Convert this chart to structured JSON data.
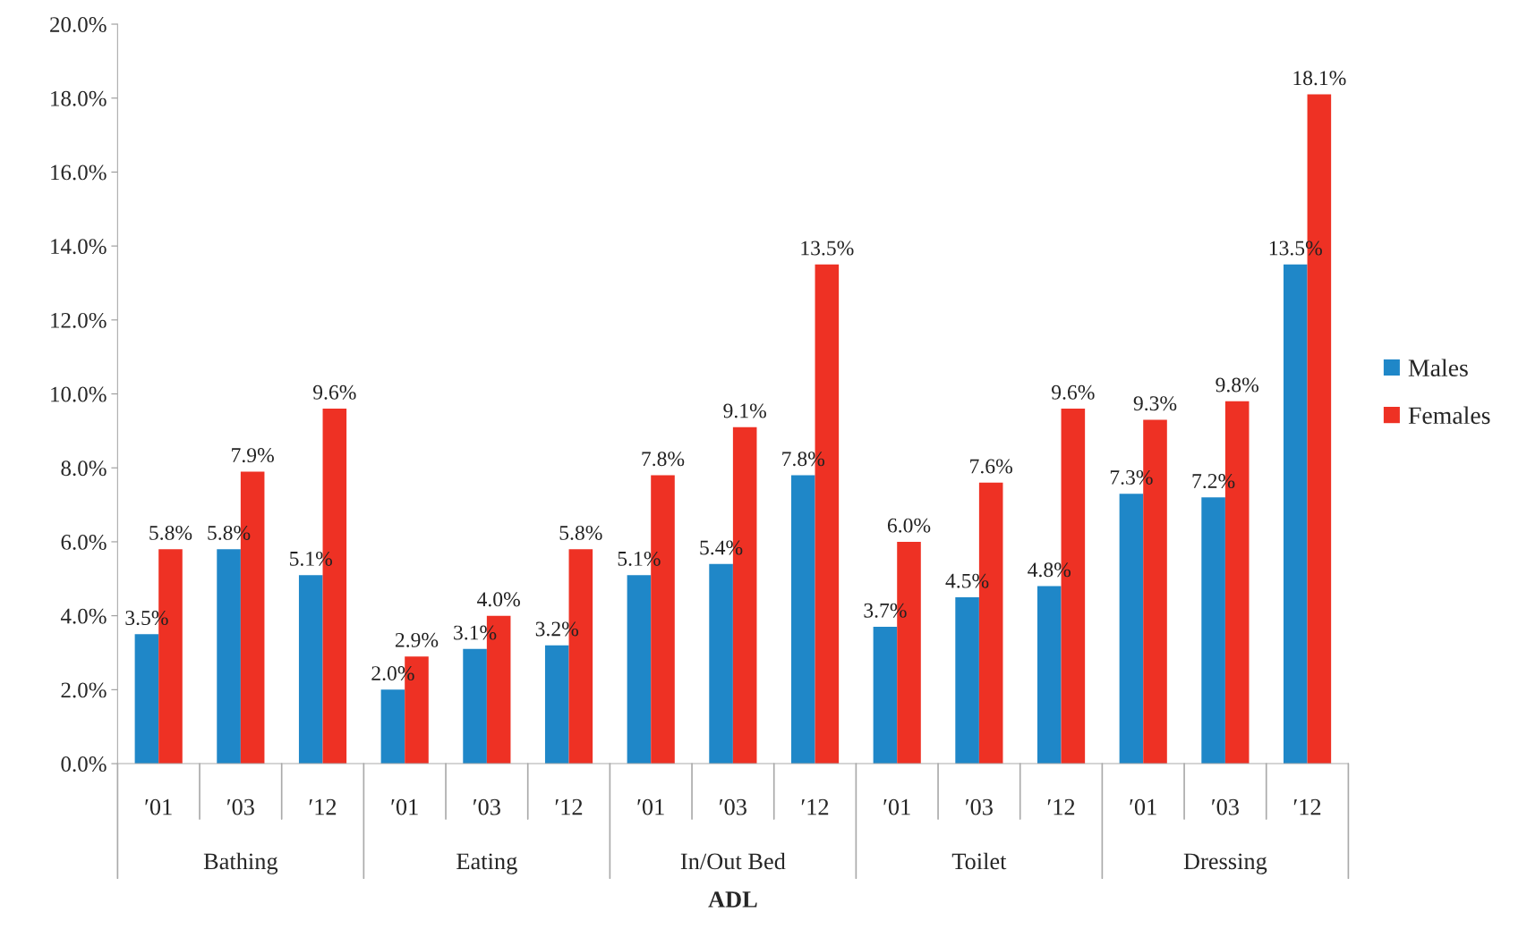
{
  "chart_data": {
    "type": "bar",
    "xlabel": "ADL",
    "categories": [
      "′01",
      "′03",
      "′12",
      "′01",
      "′03",
      "′12",
      "′01",
      "′03",
      "′12",
      "′01",
      "′03",
      "′12",
      "′01",
      "′03",
      "′12"
    ],
    "annotations": [
      "Bathing",
      "Eating",
      "In/Out Bed",
      "Toilet",
      "Dressing"
    ],
    "series": [
      {
        "name": "Males",
        "color": "#1f87c8",
        "values": [
          3.5,
          5.8,
          5.1,
          2.0,
          3.1,
          3.2,
          5.1,
          5.4,
          7.8,
          3.7,
          4.5,
          4.8,
          7.3,
          7.2,
          13.5
        ],
        "value_labels": [
          "3.5%",
          "5.8%",
          "5.1%",
          "2.0%",
          "3.1%",
          "3.2%",
          "5.1%",
          "5.4%",
          "7.8%",
          "3.7%",
          "4.5%",
          "4.8%",
          "7.3%",
          "7.2%",
          "13.5%"
        ]
      },
      {
        "name": "Females",
        "color": "#ee3124",
        "values": [
          5.8,
          7.9,
          9.6,
          2.9,
          4.0,
          5.8,
          7.8,
          9.1,
          13.5,
          6.0,
          7.6,
          9.6,
          9.3,
          9.8,
          18.1
        ],
        "value_labels": [
          "5.8%",
          "7.9%",
          "9.6%",
          "2.9%",
          "4.0%",
          "5.8%",
          "7.8%",
          "9.1%",
          "13.5%",
          "6.0%",
          "7.6%",
          "9.6%",
          "9.3%",
          "9.8%",
          "18.1%"
        ]
      }
    ],
    "ylim": [
      0,
      20
    ],
    "yticks": [
      {
        "value": 0,
        "label": "0.0%"
      },
      {
        "value": 2,
        "label": "2.0%"
      },
      {
        "value": 4,
        "label": "4.0%"
      },
      {
        "value": 6,
        "label": "6.0%"
      },
      {
        "value": 8,
        "label": "8.0%"
      },
      {
        "value": 10,
        "label": "10.0%"
      },
      {
        "value": 12,
        "label": "12.0%"
      },
      {
        "value": 14,
        "label": "14.0%"
      },
      {
        "value": 16,
        "label": "16.0%"
      },
      {
        "value": 18,
        "label": "18.0%"
      },
      {
        "value": 20,
        "label": "20.0%"
      }
    ],
    "grid": false,
    "legend": "right"
  }
}
